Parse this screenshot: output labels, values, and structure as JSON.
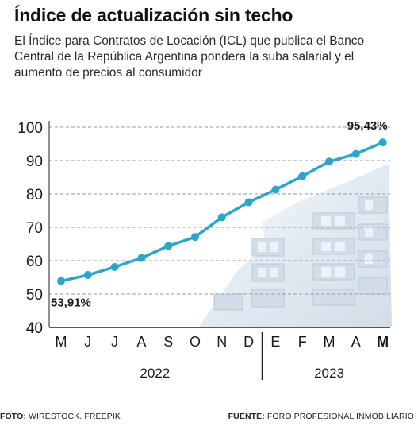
{
  "header": {
    "title": "Índice de actualización sin techo",
    "subtitle": "El Índice para Contratos de Locación (ICL) que publica el Banco Central de la República Argentina pondera la suba salarial y el aumento de precios al consumidor"
  },
  "footer": {
    "photo_label": "FOTO:",
    "photo_credit": "WIRESTOCK. FREEPIK",
    "source_label": "FUENTE:",
    "source_credit": "FORO PROFESIONAL INMOBILIARIO"
  },
  "chart_data": {
    "type": "line",
    "categories": [
      "M",
      "J",
      "J",
      "A",
      "S",
      "O",
      "N",
      "D",
      "E",
      "F",
      "M",
      "A",
      "M"
    ],
    "values": [
      53.91,
      55.7,
      58.1,
      60.8,
      64.4,
      67.1,
      73.0,
      77.5,
      81.3,
      85.3,
      89.7,
      92.0,
      95.43
    ],
    "yticks": [
      40,
      50,
      60,
      70,
      80,
      90,
      100
    ],
    "ylim": [
      40,
      100
    ],
    "grid": true,
    "line_color": "#2aa6cc",
    "year_groups": [
      {
        "label": "2022",
        "start": 0,
        "end": 7
      },
      {
        "label": "2023",
        "start": 8,
        "end": 12
      }
    ],
    "annotations": [
      {
        "index": 0,
        "text": "53,91%"
      },
      {
        "index": 12,
        "text": "95,43%"
      }
    ]
  }
}
